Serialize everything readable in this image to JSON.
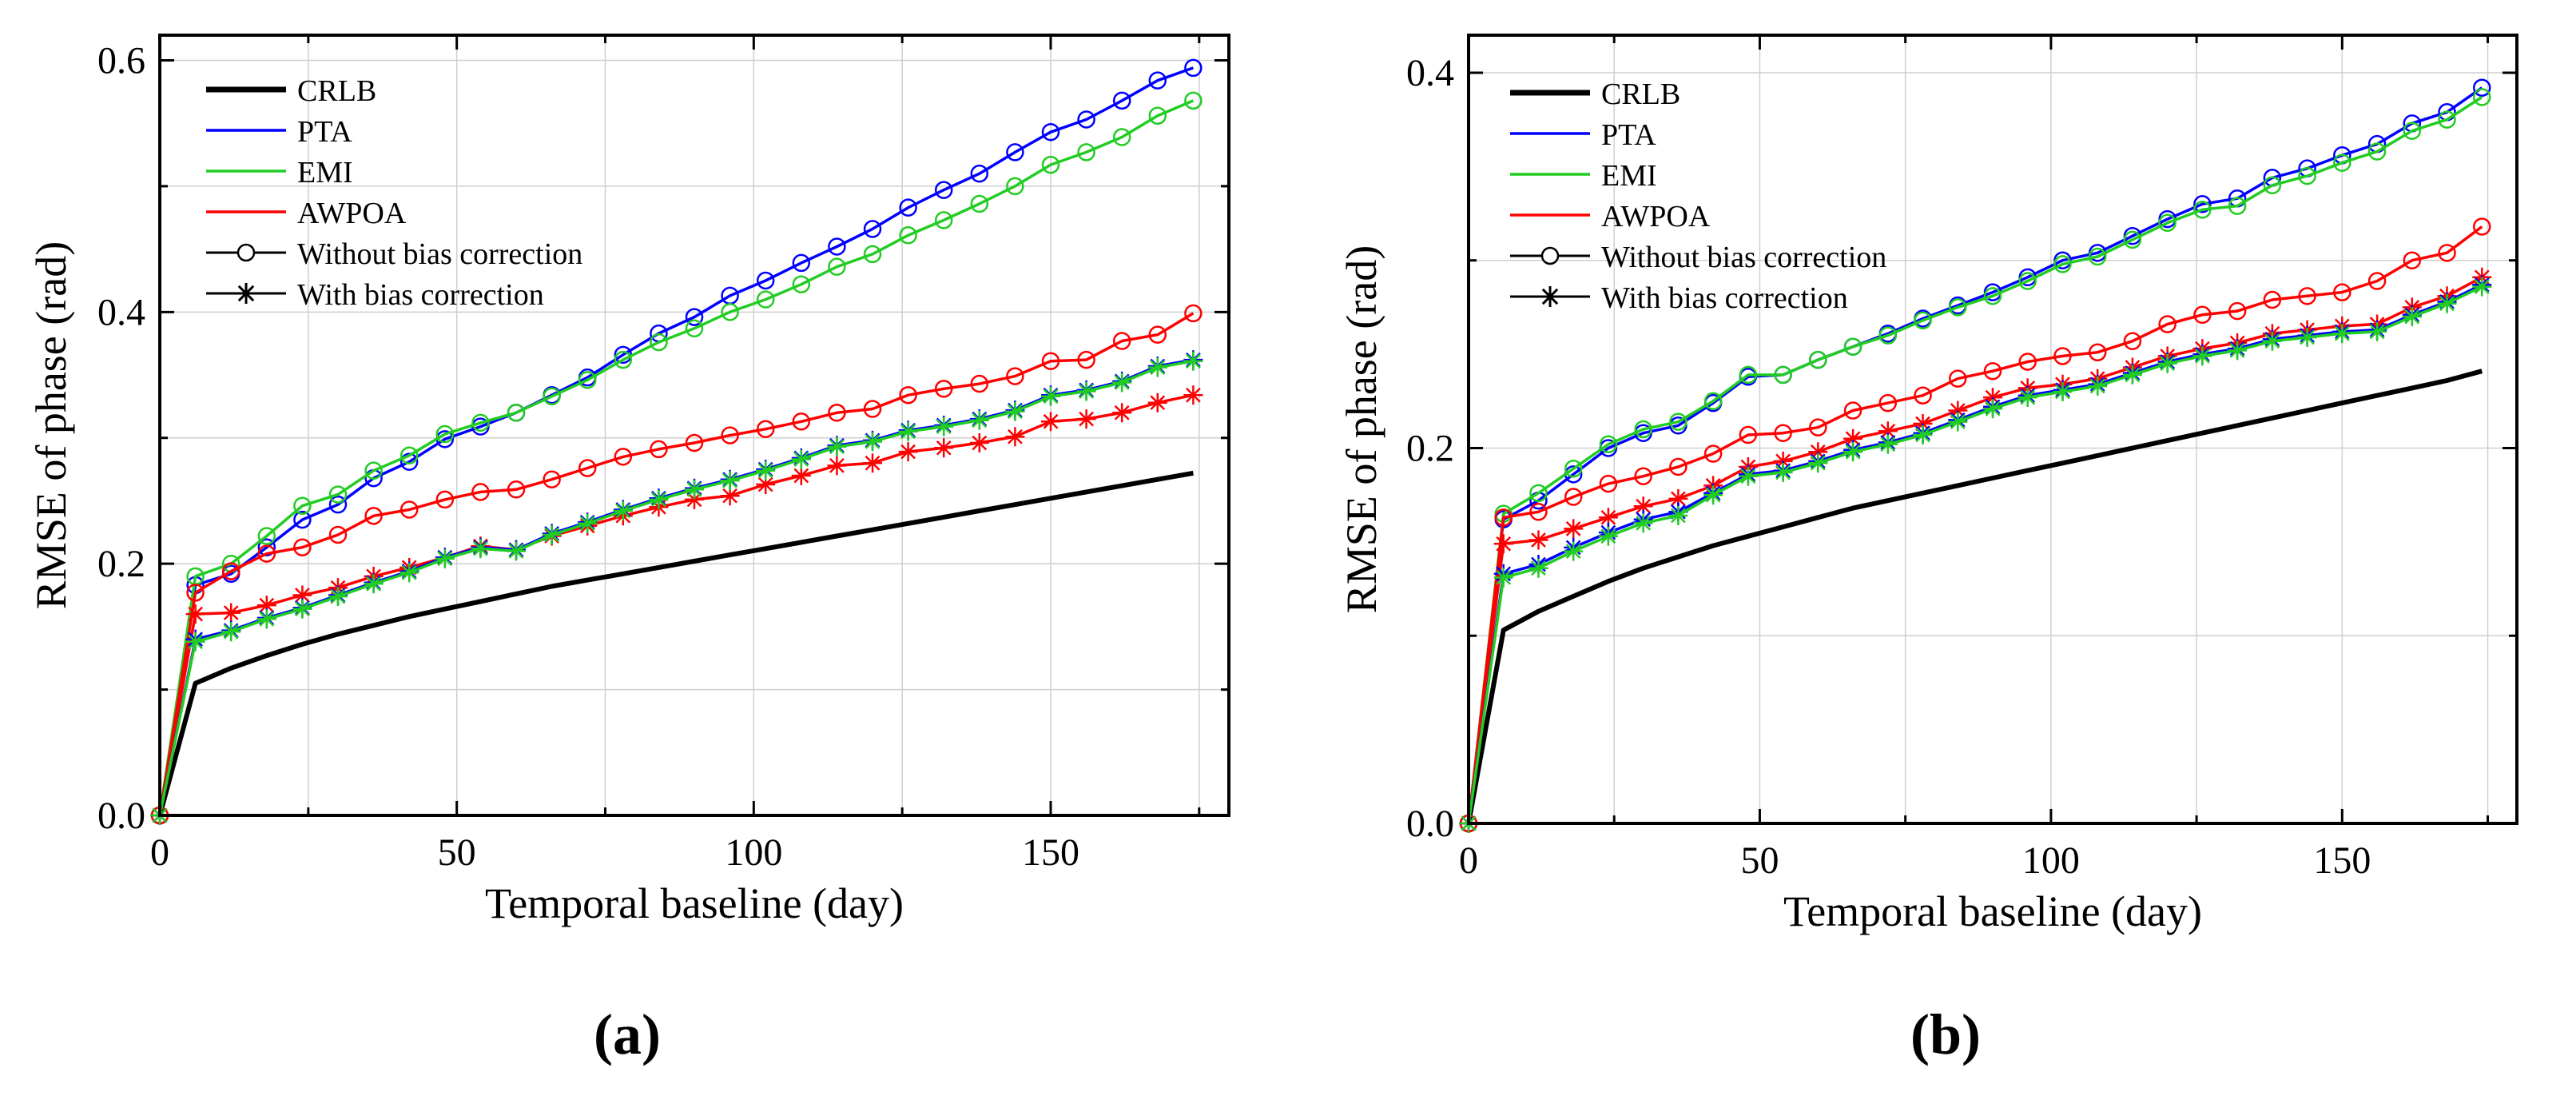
{
  "chart_data": [
    {
      "panel_label": "(a)",
      "type": "line",
      "xlabel": "Temporal baseline (day)",
      "ylabel": "RMSE of phase (rad)",
      "xlim": [
        0,
        180
      ],
      "ylim": [
        0,
        0.62
      ],
      "xticks": [
        0,
        50,
        100,
        150
      ],
      "yticks": [
        0,
        0.2,
        0.4,
        0.6
      ],
      "ytick_labels": [
        "0.0",
        "0.2",
        "0.4",
        "0.6"
      ],
      "grid": true,
      "legend_position": "top-left",
      "legend": [
        {
          "label": "CRLB",
          "kind": "line",
          "color": "#000000"
        },
        {
          "label": "PTA",
          "kind": "line",
          "color": "#0000ff"
        },
        {
          "label": "EMI",
          "kind": "line",
          "color": "#22cc22"
        },
        {
          "label": "AWPOA",
          "kind": "line",
          "color": "#ff0000"
        },
        {
          "label": "Without bias correction",
          "kind": "circle",
          "color": "#000000"
        },
        {
          "label": "With bias correction",
          "kind": "star",
          "color": "#000000"
        }
      ],
      "x": [
        0,
        6,
        12,
        18,
        24,
        30,
        36,
        42,
        48,
        54,
        60,
        66,
        72,
        78,
        84,
        90,
        96,
        102,
        108,
        114,
        120,
        126,
        132,
        138,
        144,
        150,
        156,
        162,
        168,
        174
      ],
      "series": [
        {
          "name": "CRLB",
          "color": "#000000",
          "marker": "none",
          "width": 6,
          "values": [
            0,
            0.105,
            0.117,
            0.127,
            0.136,
            0.144,
            0.151,
            0.158,
            0.164,
            0.17,
            0.176,
            0.182,
            0.187,
            0.192,
            0.197,
            0.202,
            0.207,
            0.212,
            0.217,
            0.222,
            0.227,
            0.232,
            0.237,
            0.242,
            0.247,
            0.252,
            0.257,
            0.262,
            0.267,
            0.272
          ]
        },
        {
          "name": "PTA without bias correction",
          "color": "#0000ff",
          "marker": "circle",
          "values": [
            0,
            0.183,
            0.192,
            0.213,
            0.235,
            0.247,
            0.268,
            0.281,
            0.299,
            0.309,
            0.32,
            0.334,
            0.348,
            0.366,
            0.383,
            0.396,
            0.413,
            0.425,
            0.439,
            0.452,
            0.466,
            0.483,
            0.497,
            0.51,
            0.527,
            0.543,
            0.553,
            0.568,
            0.584,
            0.594
          ]
        },
        {
          "name": "EMI without bias correction",
          "color": "#22cc22",
          "marker": "circle",
          "values": [
            0,
            0.19,
            0.2,
            0.222,
            0.246,
            0.255,
            0.274,
            0.286,
            0.303,
            0.312,
            0.32,
            0.333,
            0.346,
            0.362,
            0.376,
            0.387,
            0.4,
            0.41,
            0.422,
            0.436,
            0.446,
            0.461,
            0.473,
            0.486,
            0.5,
            0.517,
            0.527,
            0.539,
            0.556,
            0.568
          ]
        },
        {
          "name": "AWPOA without bias correction",
          "color": "#ff0000",
          "marker": "circle",
          "values": [
            0,
            0.177,
            0.194,
            0.208,
            0.213,
            0.223,
            0.238,
            0.243,
            0.251,
            0.257,
            0.259,
            0.267,
            0.276,
            0.285,
            0.291,
            0.296,
            0.302,
            0.307,
            0.313,
            0.32,
            0.323,
            0.334,
            0.339,
            0.343,
            0.349,
            0.361,
            0.362,
            0.377,
            0.382,
            0.399
          ]
        },
        {
          "name": "AWPOA with bias correction",
          "color": "#ff0000",
          "marker": "star",
          "values": [
            0,
            0.16,
            0.161,
            0.167,
            0.175,
            0.181,
            0.19,
            0.197,
            0.205,
            0.214,
            0.211,
            0.222,
            0.23,
            0.238,
            0.245,
            0.251,
            0.254,
            0.263,
            0.27,
            0.278,
            0.28,
            0.289,
            0.292,
            0.296,
            0.301,
            0.313,
            0.315,
            0.32,
            0.328,
            0.334
          ]
        },
        {
          "name": "PTA with bias correction",
          "color": "#0000ff",
          "marker": "star",
          "values": [
            0,
            0.14,
            0.147,
            0.157,
            0.165,
            0.175,
            0.185,
            0.194,
            0.205,
            0.213,
            0.211,
            0.224,
            0.233,
            0.243,
            0.252,
            0.26,
            0.267,
            0.275,
            0.284,
            0.294,
            0.298,
            0.306,
            0.31,
            0.315,
            0.322,
            0.334,
            0.338,
            0.345,
            0.357,
            0.362
          ]
        },
        {
          "name": "EMI with bias correction",
          "color": "#22cc22",
          "marker": "star",
          "values": [
            0,
            0.138,
            0.146,
            0.156,
            0.164,
            0.174,
            0.184,
            0.193,
            0.204,
            0.212,
            0.21,
            0.223,
            0.232,
            0.242,
            0.251,
            0.259,
            0.266,
            0.274,
            0.283,
            0.293,
            0.297,
            0.305,
            0.309,
            0.314,
            0.321,
            0.333,
            0.337,
            0.344,
            0.356,
            0.361
          ]
        }
      ]
    },
    {
      "panel_label": "(b)",
      "type": "line",
      "xlabel": "Temporal baseline (day)",
      "ylabel": "RMSE of phase (rad)",
      "xlim": [
        0,
        180
      ],
      "ylim": [
        0,
        0.42
      ],
      "xticks": [
        0,
        50,
        100,
        150
      ],
      "yticks": [
        0,
        0.2,
        0.4
      ],
      "ytick_labels": [
        "0.0",
        "0.2",
        "0.4"
      ],
      "grid": true,
      "legend_position": "top-left",
      "legend": [
        {
          "label": "CRLB",
          "kind": "line",
          "color": "#000000"
        },
        {
          "label": "PTA",
          "kind": "line",
          "color": "#0000ff"
        },
        {
          "label": "EMI",
          "kind": "line",
          "color": "#22cc22"
        },
        {
          "label": "AWPOA",
          "kind": "line",
          "color": "#ff0000"
        },
        {
          "label": "Without bias correction",
          "kind": "circle",
          "color": "#000000"
        },
        {
          "label": "With bias correction",
          "kind": "star",
          "color": "#000000"
        }
      ],
      "x": [
        0,
        6,
        12,
        18,
        24,
        30,
        36,
        42,
        48,
        54,
        60,
        66,
        72,
        78,
        84,
        90,
        96,
        102,
        108,
        114,
        120,
        126,
        132,
        138,
        144,
        150,
        156,
        162,
        168,
        174
      ],
      "series": [
        {
          "name": "CRLB",
          "color": "#000000",
          "marker": "none",
          "width": 6,
          "values": [
            0,
            0.103,
            0.113,
            0.121,
            0.129,
            0.136,
            0.142,
            0.148,
            0.153,
            0.158,
            0.163,
            0.168,
            0.172,
            0.176,
            0.18,
            0.184,
            0.188,
            0.192,
            0.196,
            0.2,
            0.204,
            0.208,
            0.212,
            0.216,
            0.22,
            0.224,
            0.228,
            0.232,
            0.236,
            0.241
          ]
        },
        {
          "name": "PTA without bias correction",
          "color": "#0000ff",
          "marker": "circle",
          "values": [
            0,
            0.162,
            0.172,
            0.186,
            0.2,
            0.208,
            0.212,
            0.224,
            0.238,
            0.239,
            0.247,
            0.254,
            0.261,
            0.269,
            0.276,
            0.283,
            0.291,
            0.3,
            0.304,
            0.313,
            0.322,
            0.33,
            0.333,
            0.344,
            0.349,
            0.356,
            0.362,
            0.373,
            0.379,
            0.392
          ]
        },
        {
          "name": "EMI without bias correction",
          "color": "#22cc22",
          "marker": "circle",
          "values": [
            0,
            0.165,
            0.176,
            0.189,
            0.202,
            0.21,
            0.214,
            0.225,
            0.239,
            0.239,
            0.247,
            0.254,
            0.26,
            0.268,
            0.275,
            0.281,
            0.289,
            0.298,
            0.302,
            0.311,
            0.32,
            0.327,
            0.329,
            0.34,
            0.345,
            0.352,
            0.358,
            0.369,
            0.375,
            0.387
          ]
        },
        {
          "name": "AWPOA without bias correction",
          "color": "#ff0000",
          "marker": "circle",
          "values": [
            0,
            0.163,
            0.166,
            0.174,
            0.181,
            0.185,
            0.19,
            0.197,
            0.207,
            0.208,
            0.211,
            0.22,
            0.224,
            0.228,
            0.237,
            0.241,
            0.246,
            0.249,
            0.251,
            0.257,
            0.266,
            0.271,
            0.273,
            0.279,
            0.281,
            0.283,
            0.289,
            0.3,
            0.304,
            0.318
          ]
        },
        {
          "name": "AWPOA with bias correction",
          "color": "#ff0000",
          "marker": "star",
          "values": [
            0,
            0.149,
            0.151,
            0.157,
            0.163,
            0.169,
            0.173,
            0.18,
            0.19,
            0.193,
            0.198,
            0.205,
            0.209,
            0.213,
            0.22,
            0.227,
            0.232,
            0.234,
            0.237,
            0.243,
            0.249,
            0.253,
            0.256,
            0.261,
            0.263,
            0.265,
            0.266,
            0.275,
            0.281,
            0.291
          ]
        },
        {
          "name": "PTA with bias correction",
          "color": "#0000ff",
          "marker": "star",
          "values": [
            0,
            0.133,
            0.138,
            0.147,
            0.155,
            0.162,
            0.166,
            0.176,
            0.186,
            0.188,
            0.193,
            0.199,
            0.203,
            0.208,
            0.215,
            0.222,
            0.228,
            0.231,
            0.234,
            0.24,
            0.246,
            0.25,
            0.253,
            0.258,
            0.26,
            0.262,
            0.263,
            0.271,
            0.278,
            0.287
          ]
        },
        {
          "name": "EMI with bias correction",
          "color": "#22cc22",
          "marker": "star",
          "values": [
            0,
            0.131,
            0.136,
            0.145,
            0.153,
            0.16,
            0.164,
            0.175,
            0.185,
            0.187,
            0.192,
            0.198,
            0.202,
            0.207,
            0.214,
            0.221,
            0.227,
            0.23,
            0.233,
            0.239,
            0.245,
            0.249,
            0.252,
            0.257,
            0.259,
            0.261,
            0.262,
            0.27,
            0.277,
            0.286
          ]
        }
      ]
    }
  ]
}
